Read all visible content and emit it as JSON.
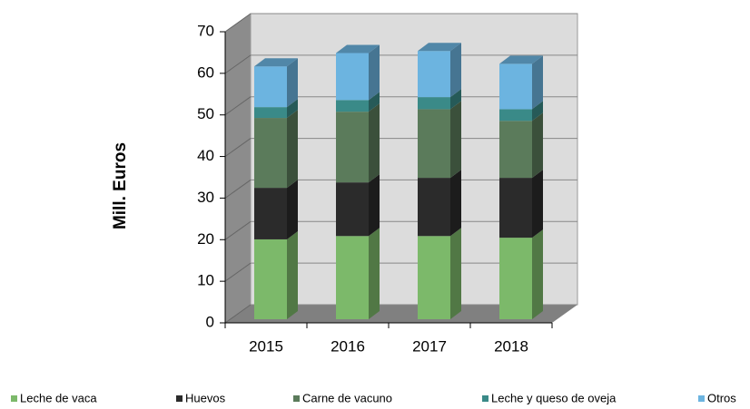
{
  "chart_data": {
    "type": "bar3d_stacked",
    "y_label": "Mill. Euros",
    "categories": [
      "2015",
      "2016",
      "2017",
      "2018"
    ],
    "series": [
      {
        "name": "Leche de vaca",
        "color": "#7cb96a",
        "values": [
          19.2,
          20,
          20,
          19.6
        ]
      },
      {
        "name": "Huevos",
        "color": "#2b2b2b",
        "values": [
          12.4,
          12.9,
          14,
          14.4
        ]
      },
      {
        "name": "Carne de vacuno",
        "color": "#5b7b5b",
        "values": [
          16.8,
          17,
          16.5,
          13.7
        ]
      },
      {
        "name": "Leche y queso de oveja",
        "color": "#3a8a88",
        "values": [
          2.6,
          2.8,
          2.9,
          2.8
        ]
      },
      {
        "name": "Otros",
        "color": "#6cb4e0",
        "values": [
          9.8,
          11.3,
          11.1,
          10.9
        ]
      }
    ],
    "ylim": [
      0,
      70
    ],
    "yticks": [
      0,
      10,
      20,
      30,
      40,
      50,
      60,
      70
    ],
    "grid": true
  }
}
